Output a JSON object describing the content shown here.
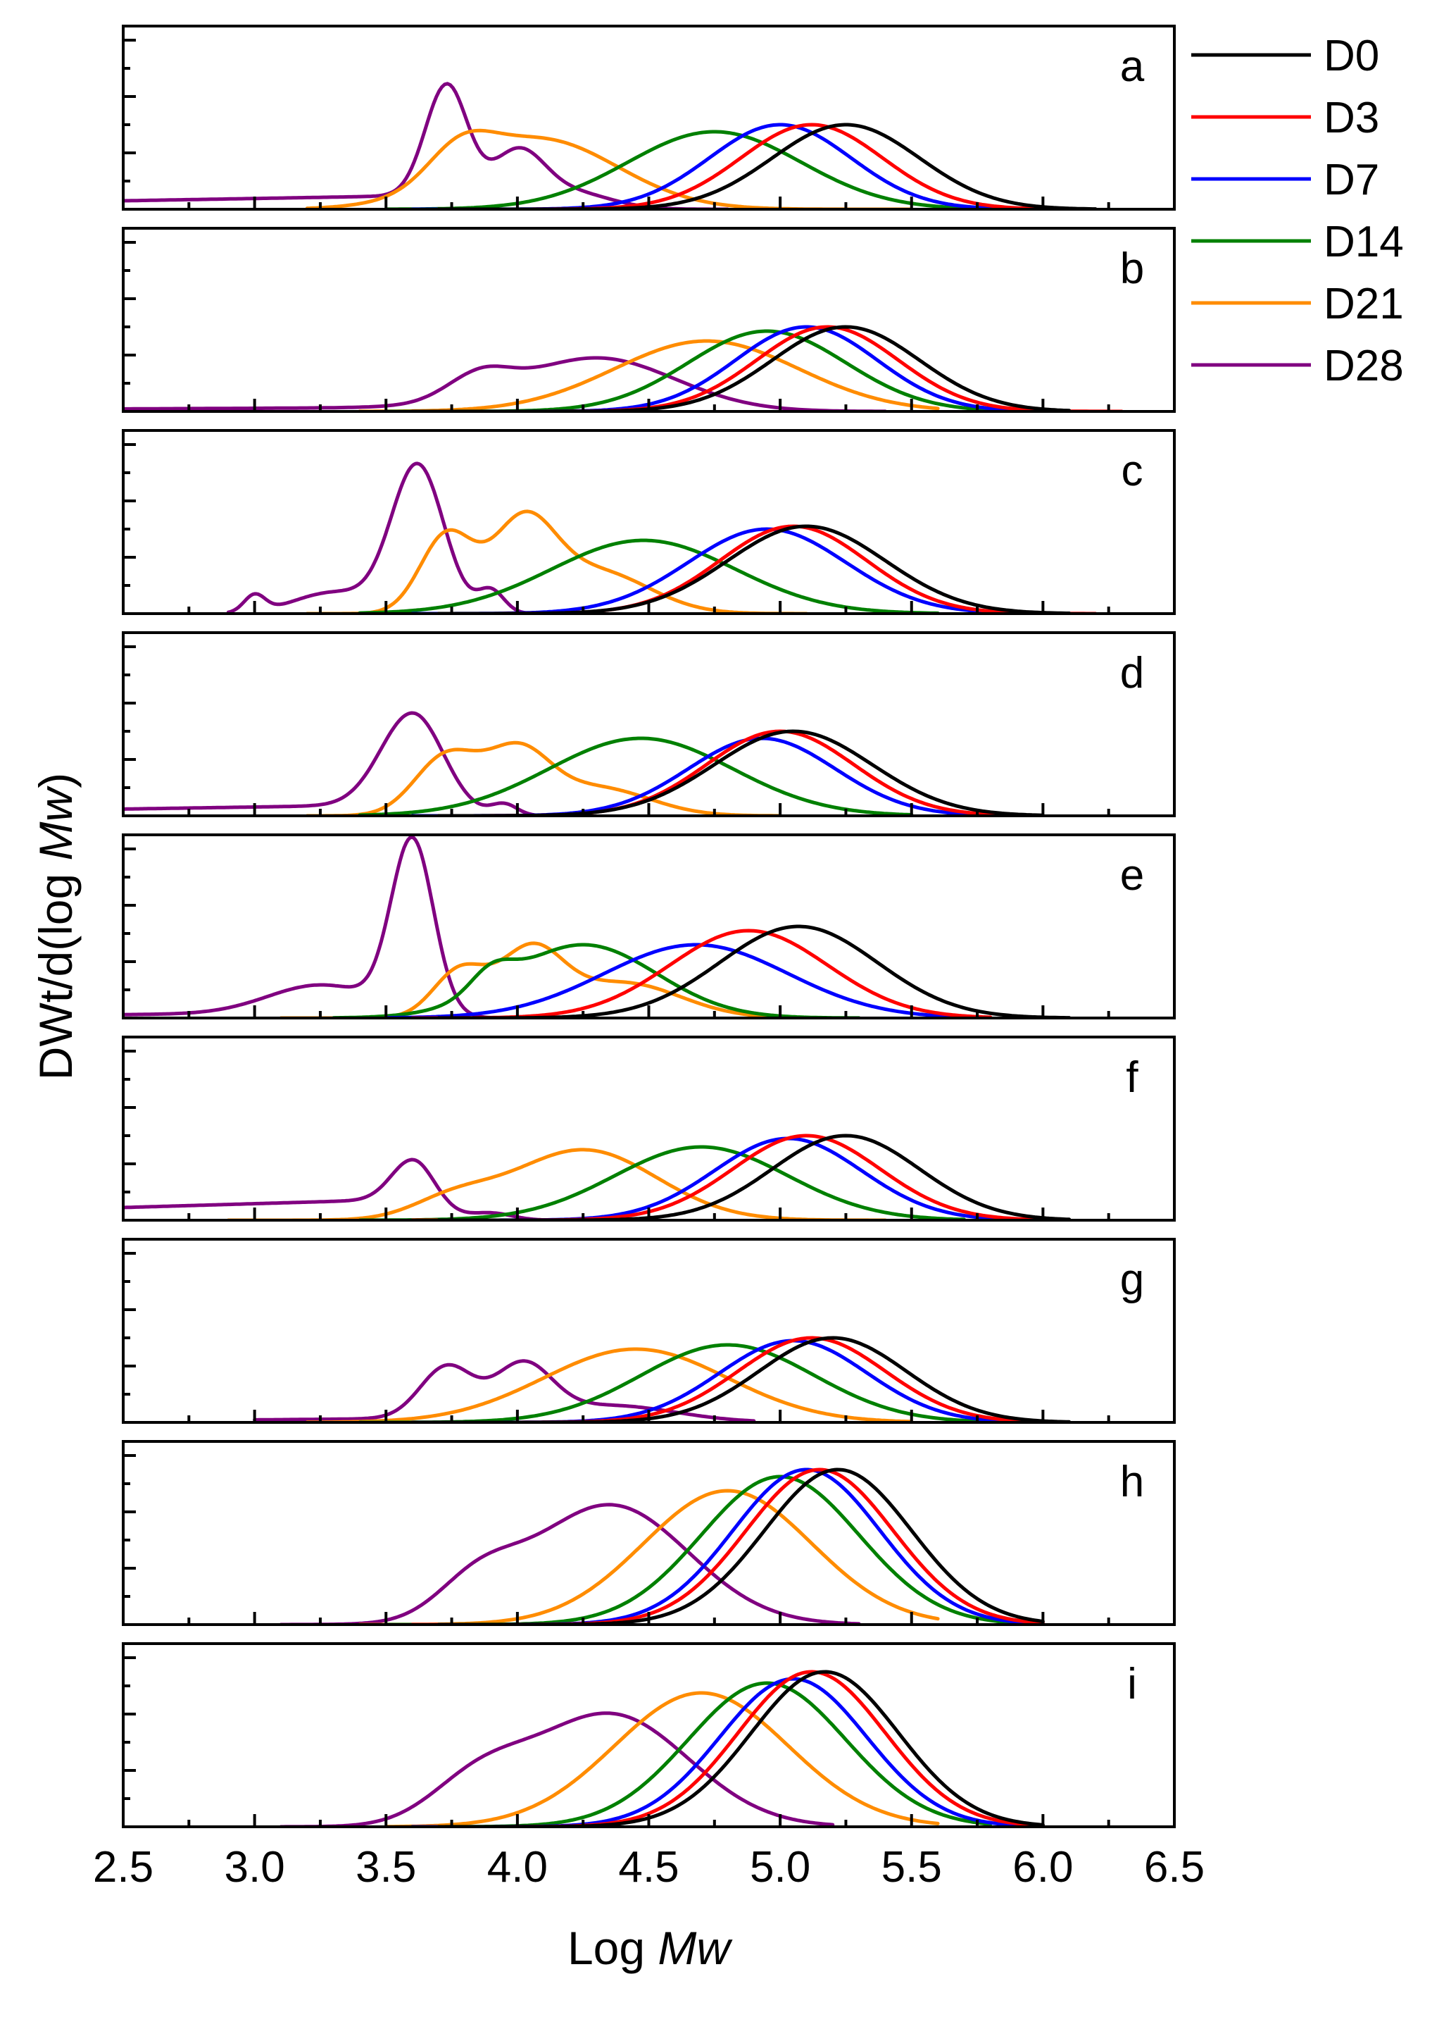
{
  "chart_data": {
    "type": "line",
    "xlabel": {
      "prefix": "Log ",
      "italic": "Mw"
    },
    "ylabel": {
      "prefix": "DWt/d(log ",
      "italic": "Mw",
      "suffix": ")"
    },
    "xlim": [
      2.5,
      6.5
    ],
    "x_ticks": [
      "2.5",
      "3.0",
      "3.5",
      "4.0",
      "4.5",
      "5.0",
      "5.5",
      "6.0",
      "6.5"
    ],
    "ylim": [
      0,
      1.3
    ],
    "grid": false,
    "legend_position": "top-right, outside plot area",
    "series_meta": [
      {
        "name": "D0",
        "color": "#000000"
      },
      {
        "name": "D3",
        "color": "#ff0000"
      },
      {
        "name": "D7",
        "color": "#0000ff"
      },
      {
        "name": "D14",
        "color": "#008000"
      },
      {
        "name": "D21",
        "color": "#ff8c00"
      },
      {
        "name": "D28",
        "color": "#800080"
      }
    ],
    "panels": [
      {
        "label": "a",
        "series": [
          {
            "name": "D0",
            "peaks": [
              [
                5.25,
                0.6,
                0.28
              ]
            ],
            "range": [
              3.7,
              6.2
            ]
          },
          {
            "name": "D3",
            "peaks": [
              [
                5.12,
                0.6,
                0.27
              ]
            ],
            "range": [
              3.7,
              6.2
            ]
          },
          {
            "name": "D7",
            "peaks": [
              [
                5.0,
                0.6,
                0.27
              ]
            ],
            "range": [
              3.6,
              6.0
            ]
          },
          {
            "name": "D14",
            "peaks": [
              [
                4.75,
                0.55,
                0.33
              ]
            ],
            "range": [
              3.5,
              5.8
            ]
          },
          {
            "name": "D21",
            "peaks": [
              [
                3.78,
                0.22,
                0.12
              ],
              [
                4.08,
                0.5,
                0.3
              ]
            ],
            "range": [
              3.2,
              5.5
            ]
          },
          {
            "name": "D28",
            "peaks": [
              [
                3.73,
                0.78,
                0.08
              ],
              [
                4.0,
                0.38,
                0.1
              ],
              [
                4.2,
                0.12,
                0.15
              ]
            ],
            "base": 0.1,
            "range": [
              2.5,
              4.8
            ]
          }
        ]
      },
      {
        "label": "b",
        "series": [
          {
            "name": "D0",
            "peaks": [
              [
                5.25,
                0.6,
                0.28
              ]
            ],
            "range": [
              3.6,
              6.1
            ]
          },
          {
            "name": "D3",
            "peaks": [
              [
                5.18,
                0.6,
                0.27
              ]
            ],
            "range": [
              3.6,
              6.3
            ]
          },
          {
            "name": "D7",
            "peaks": [
              [
                5.1,
                0.6,
                0.27
              ]
            ],
            "range": [
              3.6,
              6.0
            ]
          },
          {
            "name": "D14",
            "peaks": [
              [
                4.95,
                0.57,
                0.3
              ]
            ],
            "range": [
              3.5,
              5.8
            ]
          },
          {
            "name": "D21",
            "peaks": [
              [
                4.72,
                0.5,
                0.35
              ]
            ],
            "range": [
              3.4,
              5.6
            ]
          },
          {
            "name": "D28",
            "peaks": [
              [
                3.85,
                0.15,
                0.12
              ],
              [
                4.3,
                0.38,
                0.3
              ]
            ],
            "base": 0.03,
            "range": [
              2.5,
              5.4
            ]
          }
        ]
      },
      {
        "label": "c",
        "series": [
          {
            "name": "D0",
            "peaks": [
              [
                5.1,
                0.62,
                0.3
              ]
            ],
            "range": [
              3.7,
              6.1
            ]
          },
          {
            "name": "D3",
            "peaks": [
              [
                5.05,
                0.62,
                0.28
              ]
            ],
            "range": [
              3.7,
              6.2
            ]
          },
          {
            "name": "D7",
            "peaks": [
              [
                4.95,
                0.6,
                0.3
              ]
            ],
            "range": [
              3.6,
              5.9
            ]
          },
          {
            "name": "D14",
            "peaks": [
              [
                4.48,
                0.52,
                0.35
              ]
            ],
            "range": [
              3.4,
              5.6
            ]
          },
          {
            "name": "D21",
            "peaks": [
              [
                3.73,
                0.55,
                0.1
              ],
              [
                4.02,
                0.6,
                0.12
              ],
              [
                4.3,
                0.3,
                0.2
              ]
            ],
            "range": [
              3.2,
              5.1
            ]
          },
          {
            "name": "D28",
            "peaks": [
              [
                3.62,
                1.05,
                0.1
              ],
              [
                3.3,
                0.15,
                0.15
              ],
              [
                3.0,
                0.12,
                0.04
              ],
              [
                3.9,
                0.16,
                0.05
              ]
            ],
            "range": [
              2.9,
              4.3
            ]
          }
        ]
      },
      {
        "label": "d",
        "series": [
          {
            "name": "D0",
            "peaks": [
              [
                5.05,
                0.6,
                0.3
              ]
            ],
            "range": [
              3.7,
              6.0
            ]
          },
          {
            "name": "D3",
            "peaks": [
              [
                5.0,
                0.6,
                0.28
              ]
            ],
            "range": [
              3.7,
              5.9
            ]
          },
          {
            "name": "D7",
            "peaks": [
              [
                4.93,
                0.55,
                0.28
              ]
            ],
            "range": [
              3.6,
              5.8
            ]
          },
          {
            "name": "D14",
            "peaks": [
              [
                4.47,
                0.55,
                0.35
              ]
            ],
            "range": [
              3.4,
              5.5
            ]
          },
          {
            "name": "D21",
            "peaks": [
              [
                3.73,
                0.42,
                0.12
              ],
              [
                4.0,
                0.42,
                0.12
              ],
              [
                4.3,
                0.2,
                0.2
              ]
            ],
            "range": [
              3.2,
              5.0
            ]
          },
          {
            "name": "D28",
            "peaks": [
              [
                3.6,
                0.65,
                0.12
              ],
              [
                3.95,
                0.08,
                0.05
              ]
            ],
            "base": 0.08,
            "range": [
              2.5,
              4.1
            ]
          }
        ]
      },
      {
        "label": "e",
        "series": [
          {
            "name": "D0",
            "peaks": [
              [
                5.07,
                0.65,
                0.3
              ]
            ],
            "range": [
              3.7,
              6.1
            ]
          },
          {
            "name": "D3",
            "peaks": [
              [
                4.88,
                0.62,
                0.3
              ]
            ],
            "range": [
              3.6,
              5.8
            ]
          },
          {
            "name": "D7",
            "peaks": [
              [
                4.68,
                0.52,
                0.35
              ]
            ],
            "range": [
              3.5,
              5.7
            ]
          },
          {
            "name": "D14",
            "peaks": [
              [
                4.25,
                0.52,
                0.28
              ],
              [
                3.9,
                0.15,
                0.08
              ]
            ],
            "range": [
              3.3,
              5.3
            ]
          },
          {
            "name": "D21",
            "peaks": [
              [
                3.78,
                0.33,
                0.1
              ],
              [
                4.05,
                0.45,
                0.12
              ],
              [
                4.4,
                0.25,
                0.22
              ]
            ],
            "range": [
              3.1,
              5.1
            ]
          },
          {
            "name": "D28",
            "peaks": [
              [
                3.6,
                1.2,
                0.08
              ],
              [
                3.25,
                0.2,
                0.2
              ]
            ],
            "base": 0.04,
            "range": [
              2.5,
              4.1
            ]
          }
        ]
      },
      {
        "label": "f",
        "series": [
          {
            "name": "D0",
            "peaks": [
              [
                5.25,
                0.6,
                0.28
              ]
            ],
            "range": [
              3.7,
              6.1
            ]
          },
          {
            "name": "D3",
            "peaks": [
              [
                5.1,
                0.6,
                0.28
              ]
            ],
            "range": [
              3.6,
              6.1
            ]
          },
          {
            "name": "D7",
            "peaks": [
              [
                5.03,
                0.58,
                0.28
              ]
            ],
            "range": [
              3.6,
              6.0
            ]
          },
          {
            "name": "D14",
            "peaks": [
              [
                4.7,
                0.52,
                0.33
              ]
            ],
            "range": [
              3.4,
              5.7
            ]
          },
          {
            "name": "D21",
            "peaks": [
              [
                3.75,
                0.12,
                0.15
              ],
              [
                4.25,
                0.5,
                0.28
              ]
            ],
            "range": [
              2.9,
              5.4
            ]
          },
          {
            "name": "D28",
            "peaks": [
              [
                3.6,
                0.28,
                0.08
              ],
              [
                3.9,
                0.05,
                0.08
              ]
            ],
            "base": 0.15,
            "range": [
              2.5,
              4.1
            ]
          }
        ]
      },
      {
        "label": "g",
        "series": [
          {
            "name": "D0",
            "peaks": [
              [
                5.2,
                0.6,
                0.28
              ]
            ],
            "range": [
              3.6,
              6.1
            ]
          },
          {
            "name": "D3",
            "peaks": [
              [
                5.12,
                0.6,
                0.28
              ]
            ],
            "range": [
              3.6,
              6.1
            ]
          },
          {
            "name": "D7",
            "peaks": [
              [
                5.05,
                0.58,
                0.28
              ]
            ],
            "range": [
              3.6,
              6.1
            ]
          },
          {
            "name": "D14",
            "peaks": [
              [
                4.8,
                0.55,
                0.33
              ]
            ],
            "range": [
              3.4,
              5.8
            ]
          },
          {
            "name": "D21",
            "peaks": [
              [
                4.45,
                0.52,
                0.35
              ]
            ],
            "range": [
              3.2,
              5.5
            ]
          },
          {
            "name": "D28",
            "peaks": [
              [
                3.73,
                0.36,
                0.1
              ],
              [
                4.02,
                0.38,
                0.11
              ],
              [
                4.35,
                0.12,
                0.25
              ]
            ],
            "base": 0.03,
            "range": [
              3.0,
              4.9
            ]
          }
        ]
      },
      {
        "label": "h",
        "series": [
          {
            "name": "D0",
            "peaks": [
              [
                5.22,
                1.1,
                0.28
              ]
            ],
            "range": [
              3.7,
              6.0
            ]
          },
          {
            "name": "D3",
            "peaks": [
              [
                5.15,
                1.1,
                0.28
              ]
            ],
            "range": [
              3.6,
              6.0
            ]
          },
          {
            "name": "D7",
            "peaks": [
              [
                5.1,
                1.1,
                0.28
              ]
            ],
            "range": [
              3.6,
              6.0
            ]
          },
          {
            "name": "D14",
            "peaks": [
              [
                5.0,
                1.05,
                0.3
              ]
            ],
            "range": [
              3.5,
              5.9
            ]
          },
          {
            "name": "D21",
            "peaks": [
              [
                4.8,
                0.95,
                0.32
              ]
            ],
            "range": [
              3.4,
              5.6
            ]
          },
          {
            "name": "D28",
            "peaks": [
              [
                4.35,
                0.85,
                0.3
              ],
              [
                3.85,
                0.25,
                0.15
              ]
            ],
            "range": [
              3.1,
              5.3
            ]
          }
        ]
      },
      {
        "label": "i",
        "series": [
          {
            "name": "D0",
            "peaks": [
              [
                5.17,
                1.1,
                0.28
              ]
            ],
            "range": [
              3.7,
              6.0
            ]
          },
          {
            "name": "D3",
            "peaks": [
              [
                5.12,
                1.1,
                0.28
              ]
            ],
            "range": [
              3.7,
              6.0
            ]
          },
          {
            "name": "D7",
            "peaks": [
              [
                5.05,
                1.05,
                0.28
              ]
            ],
            "range": [
              3.6,
              5.9
            ]
          },
          {
            "name": "D14",
            "peaks": [
              [
                4.95,
                1.02,
                0.3
              ]
            ],
            "range": [
              3.6,
              5.8
            ]
          },
          {
            "name": "D21",
            "peaks": [
              [
                4.7,
                0.95,
                0.33
              ]
            ],
            "range": [
              3.5,
              5.6
            ]
          },
          {
            "name": "D28",
            "peaks": [
              [
                4.35,
                0.8,
                0.3
              ],
              [
                3.85,
                0.28,
                0.18
              ]
            ],
            "range": [
              3.1,
              5.2
            ]
          }
        ]
      }
    ]
  }
}
